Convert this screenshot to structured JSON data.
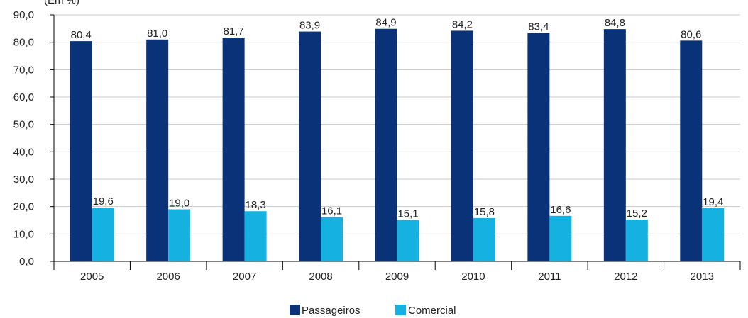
{
  "chart_data": {
    "type": "bar",
    "unit_label": "(Em %)",
    "categories": [
      "2005",
      "2006",
      "2007",
      "2008",
      "2009",
      "2010",
      "2011",
      "2012",
      "2013"
    ],
    "series": [
      {
        "name": "Passageiros",
        "color": "#0a3278",
        "values": [
          80.4,
          81.0,
          81.7,
          83.9,
          84.9,
          84.2,
          83.4,
          84.8,
          80.6
        ],
        "labels": [
          "80,4",
          "81,0",
          "81,7",
          "83,9",
          "84,9",
          "84,2",
          "83,4",
          "84,8",
          "80,6"
        ]
      },
      {
        "name": "Comercial",
        "color": "#14b1e1",
        "values": [
          19.6,
          19.0,
          18.3,
          16.1,
          15.1,
          15.8,
          16.6,
          15.2,
          19.4
        ],
        "labels": [
          "19,6",
          "19,0",
          "18,3",
          "16,1",
          "15,1",
          "15,8",
          "16,6",
          "15,2",
          "19,4"
        ]
      }
    ],
    "y_ticks": [
      "0,0",
      "10,0",
      "20,0",
      "30,0",
      "40,0",
      "50,0",
      "60,0",
      "70,0",
      "80,0",
      "90,0"
    ],
    "ylim": [
      0,
      90
    ],
    "grid": true,
    "legend_position": "bottom"
  }
}
